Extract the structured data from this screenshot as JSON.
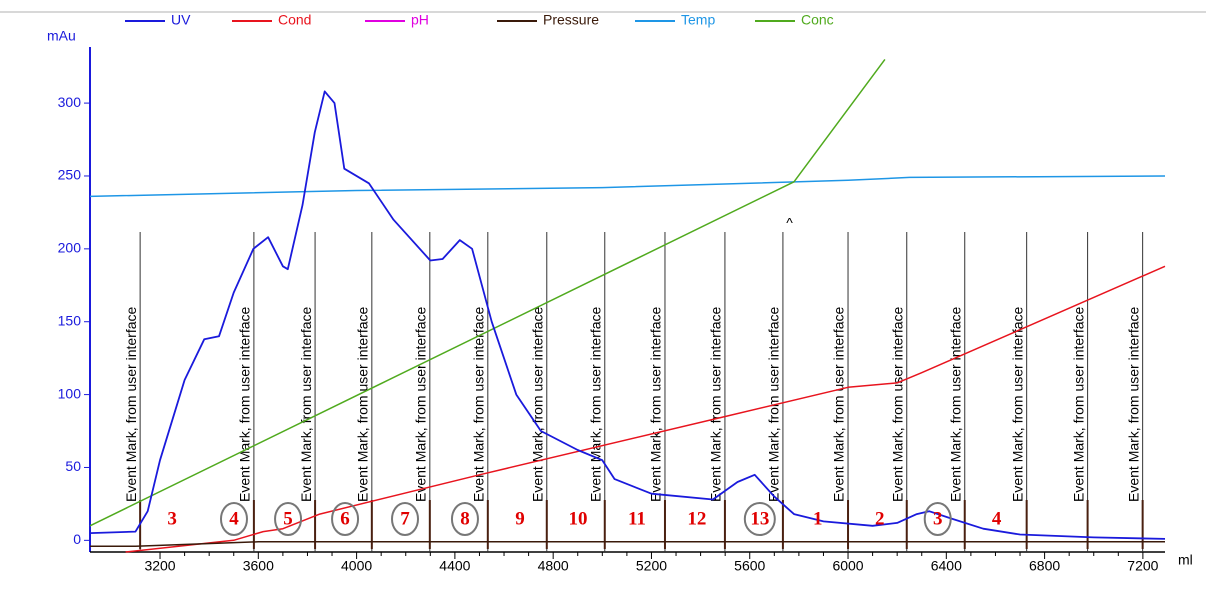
{
  "chart_data": {
    "type": "line",
    "y_label": "mAu",
    "x_label": "ml",
    "xlim": [
      2915,
      7290
    ],
    "ylim": [
      -8,
      333
    ],
    "xticks": [
      3200,
      3600,
      4000,
      4400,
      4800,
      5200,
      5600,
      6000,
      6400,
      6800,
      7200
    ],
    "yticks": [
      0,
      50,
      100,
      150,
      200,
      250,
      300
    ],
    "series": [
      {
        "name": "UV",
        "color": "#1a1adc",
        "x": [
          2915,
          3100,
          3150,
          3200,
          3300,
          3380,
          3440,
          3500,
          3580,
          3640,
          3700,
          3720,
          3780,
          3830,
          3870,
          3910,
          3950,
          4050,
          4150,
          4300,
          4350,
          4420,
          4470,
          4550,
          4650,
          4750,
          4900,
          5000,
          5050,
          5200,
          5450,
          5550,
          5620,
          5700,
          5780,
          5900,
          6100,
          6200,
          6280,
          6330,
          6420,
          6550,
          6700,
          7000,
          7290
        ],
        "values": [
          5,
          6,
          20,
          55,
          110,
          138,
          140,
          170,
          200,
          208,
          188,
          186,
          230,
          280,
          308,
          300,
          255,
          245,
          220,
          192,
          193,
          206,
          200,
          150,
          100,
          75,
          62,
          55,
          42,
          32,
          28,
          40,
          45,
          30,
          18,
          13,
          10,
          12,
          18,
          20,
          15,
          8,
          4,
          2,
          1
        ]
      },
      {
        "name": "Cond",
        "color": "#e8141e",
        "x": [
          3060,
          3500,
          3620,
          3700,
          3850,
          4500,
          5500,
          6000,
          6200,
          6300,
          7290
        ],
        "values": [
          -8,
          0,
          6,
          8,
          18,
          45,
          85,
          105,
          108,
          115,
          188
        ]
      },
      {
        "name": "pH",
        "color": "#e000e0",
        "x": [],
        "values": []
      },
      {
        "name": "Pressure",
        "color": "#3a1a0a",
        "x": [
          2915,
          3100,
          3600,
          7290
        ],
        "values": [
          -4,
          -4,
          -1,
          -1
        ]
      },
      {
        "name": "Temp",
        "color": "#1e96e6",
        "x": [
          2915,
          4000,
          5000,
          6000,
          6250,
          7290
        ],
        "values": [
          236,
          240,
          242,
          247,
          249,
          250
        ]
      },
      {
        "name": "Conc",
        "color": "#50aa1e",
        "x": [
          2915,
          5780,
          6150
        ],
        "values": [
          10,
          246,
          330
        ]
      }
    ],
    "event_label": "Event Mark, from user interface",
    "event_x": [
      3119,
      3582,
      3831,
      4062,
      4298,
      4534,
      4774,
      5010,
      5255,
      5499,
      5735,
      6000,
      6239,
      6475,
      6727,
      6975,
      7199
    ],
    "caret": {
      "label": "^",
      "x": 5762
    },
    "fractions": [
      {
        "label": "3",
        "x": 3249,
        "circled": false
      },
      {
        "label": "4",
        "x": 3501,
        "circled": true
      },
      {
        "label": "5",
        "x": 3721,
        "circled": true
      },
      {
        "label": "6",
        "x": 3953,
        "circled": true
      },
      {
        "label": "7",
        "x": 4197,
        "circled": true
      },
      {
        "label": "8",
        "x": 4441,
        "circled": true
      },
      {
        "label": "9",
        "x": 4665,
        "circled": false
      },
      {
        "label": "10",
        "x": 4901,
        "circled": false
      },
      {
        "label": "11",
        "x": 5141,
        "circled": false
      },
      {
        "label": "12",
        "x": 5385,
        "circled": false
      },
      {
        "label": "13",
        "x": 5641,
        "circled": true
      },
      {
        "label": "1",
        "x": 5877,
        "circled": false
      },
      {
        "label": "2",
        "x": 6129,
        "circled": false
      },
      {
        "label": "3",
        "x": 6365,
        "circled": true
      },
      {
        "label": "4",
        "x": 6605,
        "circled": false
      }
    ]
  }
}
